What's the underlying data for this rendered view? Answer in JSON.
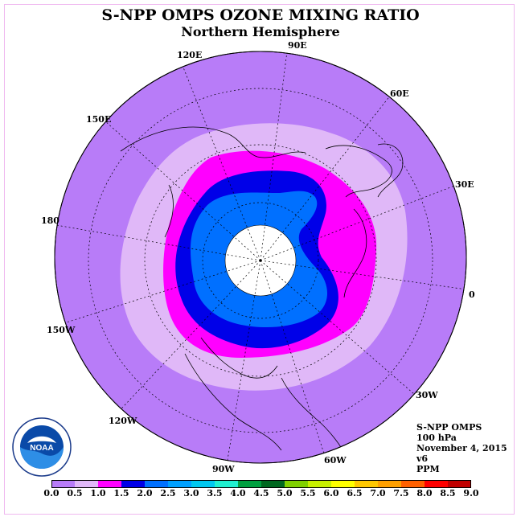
{
  "title": "S-NPP OMPS OZONE MIXING RATIO",
  "subtitle": "Northern Hemisphere",
  "longitude_labels": {
    "e90": "90E",
    "e120": "120E",
    "e60": "60E",
    "e150": "150E",
    "e30": "30E",
    "d180": "180",
    "d0": "0",
    "w150": "150W",
    "w30": "30W",
    "w120": "120W",
    "w60": "60W",
    "w90": "90W"
  },
  "info": {
    "instrument": "S-NPP OMPS",
    "level": "100 hPa",
    "date": "November 4, 2015",
    "version": "v6",
    "units": "PPM"
  },
  "logo_text": "NOAA",
  "colorbar": {
    "ticks": [
      "0.0",
      "0.5",
      "1.0",
      "1.5",
      "2.0",
      "2.5",
      "3.0",
      "3.5",
      "4.0",
      "4.5",
      "5.0",
      "5.5",
      "6.0",
      "6.5",
      "7.0",
      "7.5",
      "8.0",
      "8.5",
      "9.0"
    ],
    "colors": [
      "#b87cf8",
      "#e0b8f8",
      "#ff00ff",
      "#0000e8",
      "#0070ff",
      "#00a0ff",
      "#00c8f0",
      "#20f0d0",
      "#00a040",
      "#006820",
      "#80d000",
      "#c8f000",
      "#ffff00",
      "#ffc800",
      "#ffa000",
      "#ff6000",
      "#ff0000",
      "#c00000"
    ]
  },
  "colors": {
    "band_0_0_5": "#b87cf8",
    "band_0_5_1_0": "#e0b8f8",
    "band_1_0_1_5": "#ff00ff",
    "band_1_5_2_0": "#0000e8",
    "band_2_0_2_5": "#0070ff",
    "no_data": "#ffffff"
  }
}
